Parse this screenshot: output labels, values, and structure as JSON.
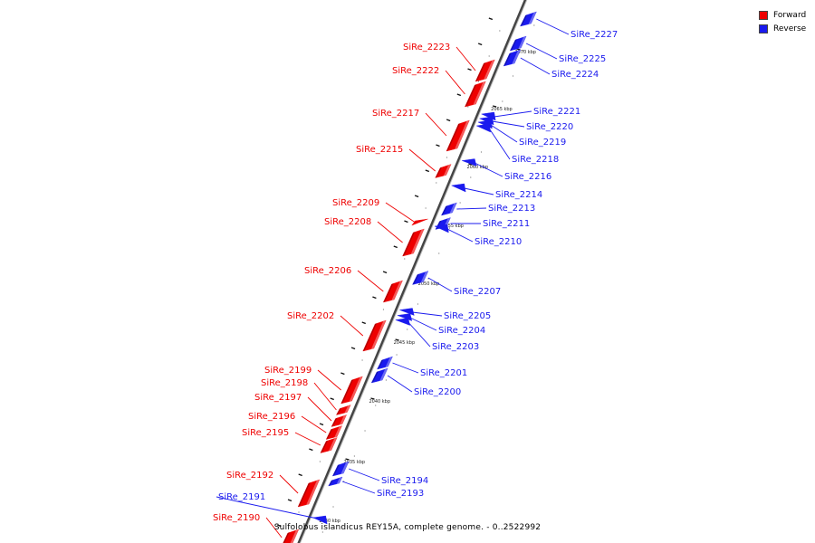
{
  "legend": {
    "forward_label": "Forward",
    "reverse_label": "Reverse",
    "forward_color": "#ee0000",
    "reverse_color": "#1a1aee"
  },
  "caption": "Sulfolobus islandicus REY15A, complete genome. - 0..2522992",
  "ticks": [
    "2070 kbp",
    "2065 kbp",
    "2060 kbp",
    "2055 kbp",
    "2050 kbp",
    "2045 kbp",
    "2040 kbp",
    "2035 kbp",
    "2030 kbp"
  ],
  "genes": [
    {
      "name": "SiRe_2227",
      "strand": "reverse"
    },
    {
      "name": "SiRe_2225",
      "strand": "reverse"
    },
    {
      "name": "SiRe_2224",
      "strand": "reverse"
    },
    {
      "name": "SiRe_2223",
      "strand": "forward"
    },
    {
      "name": "SiRe_2222",
      "strand": "forward"
    },
    {
      "name": "SiRe_2221",
      "strand": "reverse"
    },
    {
      "name": "SiRe_2220",
      "strand": "reverse"
    },
    {
      "name": "SiRe_2219",
      "strand": "reverse"
    },
    {
      "name": "SiRe_2218",
      "strand": "reverse"
    },
    {
      "name": "SiRe_2217",
      "strand": "forward"
    },
    {
      "name": "SiRe_2216",
      "strand": "reverse"
    },
    {
      "name": "SiRe_2215",
      "strand": "forward"
    },
    {
      "name": "SiRe_2214",
      "strand": "reverse"
    },
    {
      "name": "SiRe_2213",
      "strand": "reverse"
    },
    {
      "name": "SiRe_2211",
      "strand": "reverse"
    },
    {
      "name": "SiRe_2210",
      "strand": "reverse"
    },
    {
      "name": "SiRe_2209",
      "strand": "forward"
    },
    {
      "name": "SiRe_2208",
      "strand": "forward"
    },
    {
      "name": "SiRe_2207",
      "strand": "reverse"
    },
    {
      "name": "SiRe_2206",
      "strand": "forward"
    },
    {
      "name": "SiRe_2205",
      "strand": "reverse"
    },
    {
      "name": "SiRe_2204",
      "strand": "reverse"
    },
    {
      "name": "SiRe_2203",
      "strand": "reverse"
    },
    {
      "name": "SiRe_2202",
      "strand": "forward"
    },
    {
      "name": "SiRe_2201",
      "strand": "reverse"
    },
    {
      "name": "SiRe_2200",
      "strand": "reverse"
    },
    {
      "name": "SiRe_2199",
      "strand": "forward"
    },
    {
      "name": "SiRe_2198",
      "strand": "forward"
    },
    {
      "name": "SiRe_2197",
      "strand": "forward"
    },
    {
      "name": "SiRe_2196",
      "strand": "forward"
    },
    {
      "name": "SiRe_2195",
      "strand": "forward"
    },
    {
      "name": "SiRe_2194",
      "strand": "reverse"
    },
    {
      "name": "SiRe_2193",
      "strand": "reverse"
    },
    {
      "name": "SiRe_2192",
      "strand": "forward"
    },
    {
      "name": "SiRe_2191",
      "strand": "reverse"
    },
    {
      "name": "SiRe_2190",
      "strand": "forward"
    }
  ]
}
